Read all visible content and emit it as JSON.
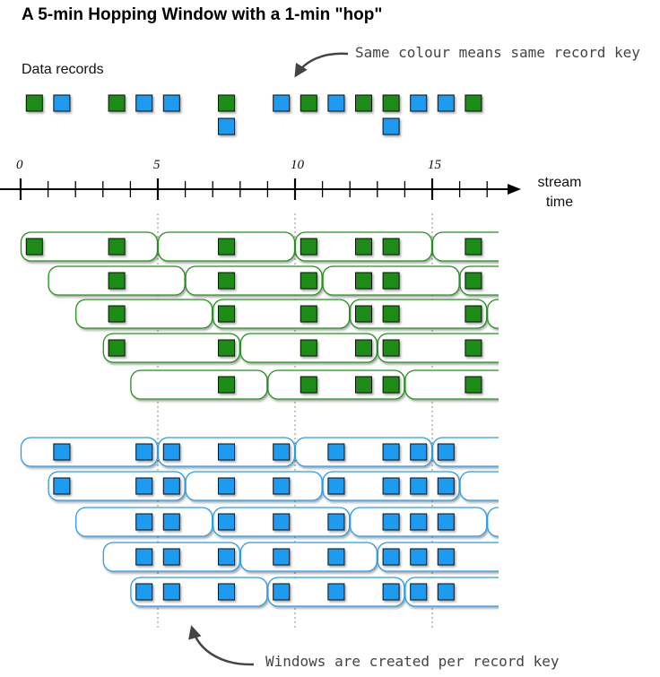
{
  "title": "A 5-min Hopping Window with a 1-min \"hop\"",
  "records_label": "Data records",
  "annotation_top": "Same colour means same record key",
  "annotation_bottom": "Windows are created per record key",
  "axis": {
    "label_line1": "stream",
    "label_line2": "time",
    "tick_labels": [
      "0",
      "5",
      "10",
      "15"
    ]
  },
  "window": {
    "size_min": 5,
    "hop_min": 1
  },
  "colors": {
    "green": "#1f8c12",
    "blue": "#1e9bf0",
    "green_border": "#24911a",
    "blue_border": "#2b9ce6"
  },
  "records": [
    {
      "t": 0.5,
      "key": "green"
    },
    {
      "t": 1.5,
      "key": "blue"
    },
    {
      "t": 3.5,
      "key": "green"
    },
    {
      "t": 4.5,
      "key": "blue"
    },
    {
      "t": 5.5,
      "key": "blue"
    },
    {
      "t": 7.5,
      "key": "green"
    },
    {
      "t": 7.5,
      "key": "blue"
    },
    {
      "t": 9.5,
      "key": "blue"
    },
    {
      "t": 10.5,
      "key": "green"
    },
    {
      "t": 11.5,
      "key": "blue"
    },
    {
      "t": 12.5,
      "key": "green"
    },
    {
      "t": 13.5,
      "key": "green"
    },
    {
      "t": 13.5,
      "key": "blue"
    },
    {
      "t": 14.5,
      "key": "blue"
    },
    {
      "t": 15.5,
      "key": "blue"
    },
    {
      "t": 16.5,
      "key": "green"
    }
  ]
}
